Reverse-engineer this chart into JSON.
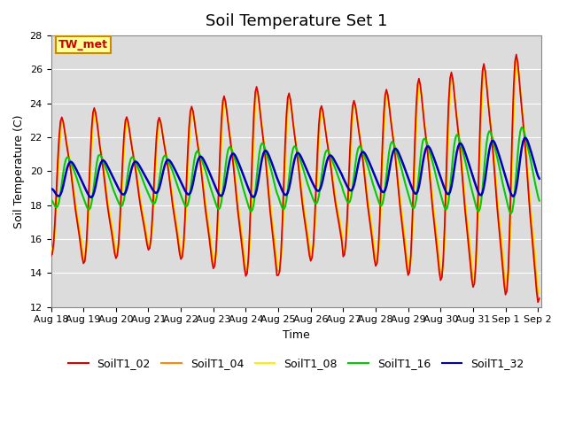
{
  "title": "Soil Temperature Set 1",
  "xlabel": "Time",
  "ylabel": "Soil Temperature (C)",
  "ylim": [
    12,
    28
  ],
  "bg_color": "#dcdcdc",
  "fig_color": "#ffffff",
  "annotation": "TW_met",
  "annotation_color": "#cc0000",
  "annotation_bg": "#ffff99",
  "annotation_border": "#cc8800",
  "series": {
    "SoilT1_02": {
      "color": "#dd0000",
      "lw": 1.2
    },
    "SoilT1_04": {
      "color": "#ff8800",
      "lw": 1.2
    },
    "SoilT1_08": {
      "color": "#ffee00",
      "lw": 1.2
    },
    "SoilT1_16": {
      "color": "#00cc00",
      "lw": 1.5
    },
    "SoilT1_32": {
      "color": "#0000bb",
      "lw": 1.8
    }
  },
  "xtick_labels": [
    "Aug 18",
    "Aug 19",
    "Aug 20",
    "Aug 21",
    "Aug 22",
    "Aug 23",
    "Aug 24",
    "Aug 25",
    "Aug 26",
    "Aug 27",
    "Aug 28",
    "Aug 29",
    "Aug 30",
    "Aug 31",
    "Sep 1",
    "Sep 2"
  ],
  "title_fontsize": 13,
  "label_fontsize": 9,
  "tick_fontsize": 8,
  "legend_fontsize": 9
}
